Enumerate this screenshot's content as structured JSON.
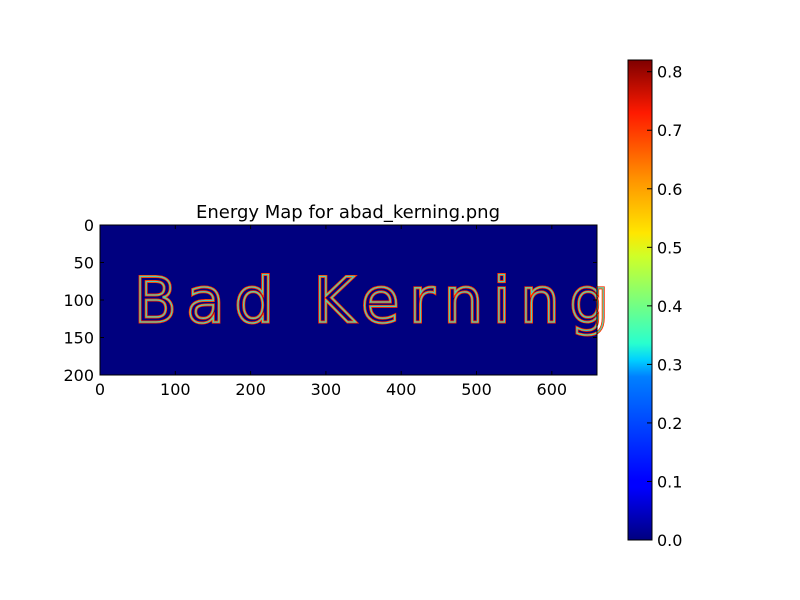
{
  "chart_data": [
    {
      "type": "heatmap",
      "title": "Energy Map for abad_kerning.png",
      "xlabel": "",
      "ylabel": "",
      "xlim": [
        0,
        660
      ],
      "ylim": [
        200,
        0
      ],
      "xticks": [
        "0",
        "100",
        "200",
        "300",
        "400",
        "500",
        "600"
      ],
      "yticks": [
        "0",
        "50",
        "100",
        "150",
        "200"
      ],
      "background_value": 0.0,
      "image_text": "Bad Kerning",
      "image_text_region": {
        "x_start": 50,
        "x_end": 610,
        "y_top": 65,
        "y_bottom": 135
      },
      "edge_energy_range": [
        0.3,
        0.8
      ],
      "colormap": "jet"
    },
    {
      "type": "colorbar",
      "min": 0.0,
      "max": 0.82,
      "ticks": [
        "0.0",
        "0.1",
        "0.2",
        "0.3",
        "0.4",
        "0.5",
        "0.6",
        "0.7",
        "0.8"
      ],
      "colormap": "jet"
    }
  ],
  "colors": {
    "background_low": "#00007f",
    "edge_outer": "#ff2200",
    "edge_mid": "#7fff7f",
    "edge_inner": "#00bfff"
  }
}
